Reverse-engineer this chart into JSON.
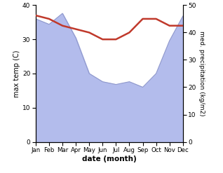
{
  "months": [
    "Jan",
    "Feb",
    "Mar",
    "Apr",
    "May",
    "Jun",
    "Jul",
    "Aug",
    "Sep",
    "Oct",
    "Nov",
    "Dec"
  ],
  "temperature": [
    37,
    36,
    34,
    33,
    32,
    30,
    30,
    32,
    36,
    36,
    34,
    34
  ],
  "precipitation": [
    45,
    43,
    47,
    38,
    25,
    22,
    21,
    22,
    20,
    25,
    37,
    46
  ],
  "temp_color": "#c0392b",
  "precip_fill_color": "#b3bcec",
  "precip_line_color": "#9099cc",
  "temp_ylim": [
    0,
    40
  ],
  "precip_ylim": [
    0,
    50
  ],
  "temp_yticks": [
    0,
    10,
    20,
    30,
    40
  ],
  "precip_yticks": [
    0,
    10,
    20,
    30,
    40,
    50
  ],
  "xlabel": "date (month)",
  "ylabel_left": "max temp (C)",
  "ylabel_right": "med. precipitation (kg/m2)",
  "temp_linewidth": 1.8,
  "background_color": "#ffffff"
}
